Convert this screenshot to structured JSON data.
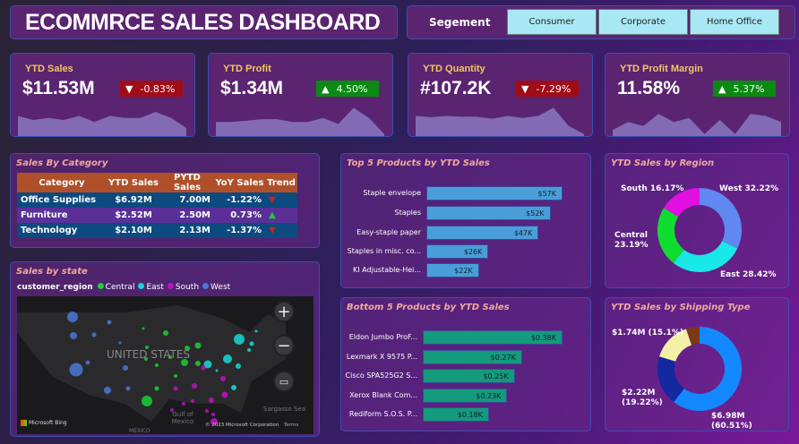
{
  "header": {
    "title": "ECOMMRCE SALES DASHBOARD",
    "segment_label": "Segement",
    "segments": [
      "Consumer",
      "Corporate",
      "Home Office"
    ]
  },
  "kpis": [
    {
      "title": "YTD Sales",
      "value": "$11.53M",
      "change": "-0.83%",
      "direction": "down",
      "spark": [
        5,
        4,
        4.5,
        4,
        5,
        3.5,
        5,
        4.5,
        4.5,
        6,
        4.5,
        2
      ]
    },
    {
      "title": "YTD Profit",
      "value": "$1.34M",
      "change": "4.50%",
      "direction": "up",
      "spark": [
        3.5,
        3.5,
        3.8,
        4.2,
        4.2,
        3.5,
        3.5,
        4.5,
        3,
        7,
        4.5,
        0.5
      ]
    },
    {
      "title": "YTD Quantity",
      "value": "#107.2K",
      "change": "-7.29%",
      "direction": "down",
      "spark": [
        5,
        4.7,
        5,
        4.8,
        4.8,
        4.3,
        5,
        4.5,
        5,
        7,
        2.5,
        0.5
      ]
    },
    {
      "title": "YTD Profit Margin",
      "value": "11.58%",
      "change": "5.37%",
      "direction": "up",
      "spark": [
        1.5,
        3.5,
        2.5,
        5.5,
        3.5,
        4.5,
        0.5,
        4,
        0.5,
        5.5,
        5,
        3.5
      ]
    }
  ],
  "colors": {
    "up": "#0a8a12",
    "down": "#a00c18",
    "up_arrow": "#22cc33",
    "down_arrow": "#c0281c"
  },
  "category_table": {
    "title": "Sales By Category",
    "columns": [
      "Category",
      "YTD Sales",
      "PYTD Sales",
      "YoY Sales",
      "Trend"
    ],
    "rows": [
      [
        "Office Supplies",
        "$6.92M",
        "7.00M",
        "-1.22%",
        "down"
      ],
      [
        "Furniture",
        "$2.52M",
        "2.50M",
        "0.73%",
        "up"
      ],
      [
        "Technology",
        "$2.10M",
        "2.13M",
        "-1.37%",
        "down"
      ]
    ]
  },
  "map": {
    "title": "Sales by state",
    "legend_title": "customer_region",
    "regions": [
      {
        "name": "Central",
        "color": "#18d030"
      },
      {
        "name": "East",
        "color": "#18d8d8"
      },
      {
        "name": "South",
        "color": "#c010c8"
      },
      {
        "name": "West",
        "color": "#4a78d8"
      }
    ],
    "country_label": "UNITED STATES",
    "gulf_label": "Gulf of Mexico",
    "sea_label": "Sargasso Sea",
    "mexico_label": "MEXICO",
    "bing": "Microsoft Bing",
    "copyright": "© 2023 Microsoft Corporation",
    "terms": "Terms"
  },
  "top5": {
    "title": "Top 5 Products by YTD Sales",
    "color": "#4a9ed8",
    "items": [
      {
        "name": "Staple envelope",
        "value": 57,
        "label": "$57K"
      },
      {
        "name": "Staples",
        "value": 52,
        "label": "$52K"
      },
      {
        "name": "Easy-staple paper",
        "value": 47,
        "label": "$47K"
      },
      {
        "name": "Staples in misc. co...",
        "value": 26,
        "label": "$26K"
      },
      {
        "name": "KI Adjustable-Hei...",
        "value": 22,
        "label": "$22K"
      }
    ]
  },
  "bottom5": {
    "title": "Bottom 5 Products by YTD Sales",
    "color": "#149a7c",
    "items": [
      {
        "name": "Eldon Jumbo ProF...",
        "value": 0.38,
        "label": "$0.38K"
      },
      {
        "name": "Lexmark X 9575 P...",
        "value": 0.27,
        "label": "$0.27K"
      },
      {
        "name": "Cisco SPA525G2 S...",
        "value": 0.25,
        "label": "$0.25K"
      },
      {
        "name": "Xerox Blank Com...",
        "value": 0.23,
        "label": "$0.23K"
      },
      {
        "name": "Rediform S.O.S. P...",
        "value": 0.18,
        "label": "$0.18K"
      }
    ]
  },
  "region_donut": {
    "title": "YTD Sales by Region",
    "slices": [
      {
        "label": "West 32.22%",
        "value": 32.22,
        "color": "#6088f0"
      },
      {
        "label": "East 28.42%",
        "value": 28.42,
        "color": "#18e8e8"
      },
      {
        "label": "Central 23.19%",
        "value": 23.19,
        "color": "#10dc30"
      },
      {
        "label": "South 16.17%",
        "value": 16.17,
        "color": "#e010e0"
      }
    ]
  },
  "ship_donut": {
    "title": "YTD Sales by Shipping Type",
    "slices": [
      {
        "label": "$6.98M (60.51%)",
        "value": 60.51,
        "color": "#1488ff"
      },
      {
        "label": "$2.22M (19.22%)",
        "value": 19.22,
        "color": "#1428a0"
      },
      {
        "label": "$1.74M (15.1%)",
        "value": 15.1,
        "color": "#f4f0a8"
      },
      {
        "label": "",
        "value": 5.17,
        "color": "#7a3818"
      }
    ]
  }
}
